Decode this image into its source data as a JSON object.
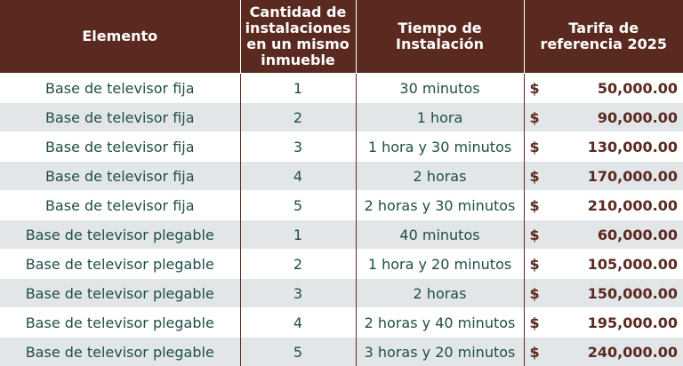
{
  "headers": [
    "Elemento",
    "Cantidad de instalaciones en un mismo inmueble",
    "Tiempo de Instalación",
    "Tarifa de referencia 2025"
  ],
  "currency_symbol": "$",
  "rows": [
    {
      "element": "Base de televisor fija",
      "quantity": "1",
      "time": "30 minutos",
      "rate": "50,000.00"
    },
    {
      "element": "Base de televisor fija",
      "quantity": "2",
      "time": "1 hora",
      "rate": "90,000.00"
    },
    {
      "element": "Base de televisor fija",
      "quantity": "3",
      "time": "1 hora y 30 minutos",
      "rate": "130,000.00"
    },
    {
      "element": "Base de televisor fija",
      "quantity": "4",
      "time": "2 horas",
      "rate": "170,000.00"
    },
    {
      "element": "Base de televisor fija",
      "quantity": "5",
      "time": "2 horas y 30 minutos",
      "rate": "210,000.00"
    },
    {
      "element": "Base de televisor plegable",
      "quantity": "1",
      "time": "40 minutos",
      "rate": "60,000.00"
    },
    {
      "element": "Base de televisor plegable",
      "quantity": "2",
      "time": "1 hora y 20 minutos",
      "rate": "105,000.00"
    },
    {
      "element": "Base de televisor plegable",
      "quantity": "3",
      "time": "2 horas",
      "rate": "150,000.00"
    },
    {
      "element": "Base de televisor plegable",
      "quantity": "4",
      "time": "2 horas y 40 minutos",
      "rate": "195,000.00"
    },
    {
      "element": "Base de televisor plegable",
      "quantity": "5",
      "time": "3 horas y 20 minutos",
      "rate": "240,000.00"
    }
  ]
}
